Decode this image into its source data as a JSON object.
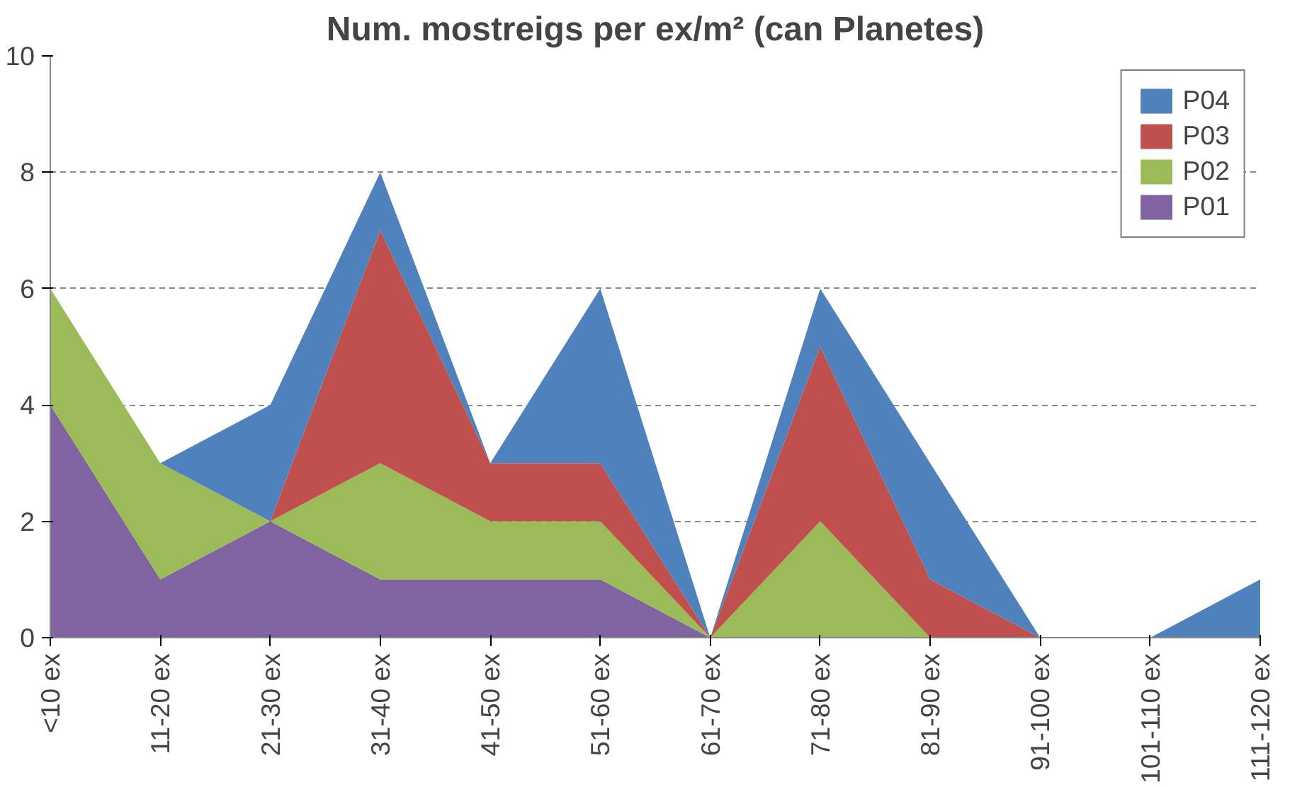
{
  "chart_data": {
    "type": "area",
    "title": "Num. mostreigs per ex/m² (can Planetes)",
    "stacked": true,
    "categories": [
      "<10 ex",
      "11-20 ex",
      "21-30 ex",
      "31-40 ex",
      "41-50 ex",
      "51-60 ex",
      "61-70 ex",
      "71-80 ex",
      "81-90 ex",
      "91-100 ex",
      "101-110 ex",
      "111-120 ex"
    ],
    "series": [
      {
        "name": "P01",
        "color": "#8064a2",
        "values": [
          4,
          1,
          2,
          1,
          1,
          1,
          0,
          0,
          0,
          0,
          0,
          0
        ]
      },
      {
        "name": "P02",
        "color": "#9bbb59",
        "values": [
          2,
          2,
          0,
          2,
          1,
          1,
          0,
          2,
          0,
          0,
          0,
          0
        ]
      },
      {
        "name": "P03",
        "color": "#c0504d",
        "values": [
          0,
          0,
          0,
          4,
          1,
          1,
          0,
          3,
          1,
          0,
          0,
          0
        ]
      },
      {
        "name": "P04",
        "color": "#4f81bd",
        "values": [
          0,
          0,
          2,
          1,
          0,
          3,
          0,
          1,
          2,
          0,
          0,
          1
        ]
      }
    ],
    "ylim": [
      0,
      10
    ],
    "yticks": [
      0,
      2,
      4,
      6,
      8,
      10
    ],
    "grid": "y",
    "legend": "top right"
  }
}
